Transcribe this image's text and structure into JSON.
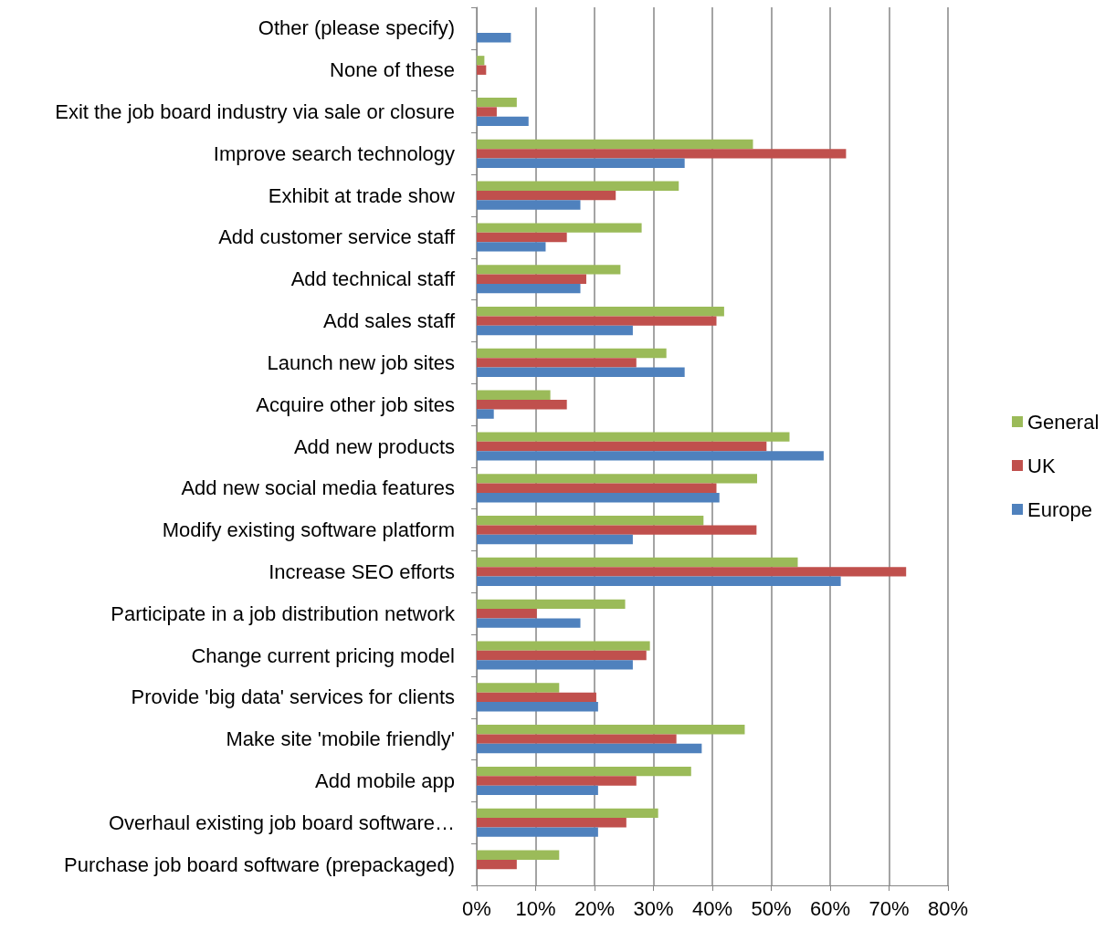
{
  "chart_data": {
    "type": "bar",
    "orientation": "horizontal",
    "categories": [
      "Other (please specify)",
      "None of these",
      "Exit the job board industry via sale or closure",
      "Improve search technology",
      "Exhibit at trade show",
      "Add customer service staff",
      "Add technical staff",
      "Add sales staff",
      "Launch new job sites",
      "Acquire other job sites",
      "Add new products",
      "Add new social media features",
      "Modify existing software platform",
      "Increase SEO efforts",
      "Participate in a job distribution network",
      "Change current pricing model",
      "Provide 'big data' services for clients",
      "Make site 'mobile friendly'",
      "Add mobile app",
      "Overhaul existing job board software…",
      "Purchase job board software (prepackaged)"
    ],
    "series": [
      {
        "name": "General",
        "color": "#9bbb59",
        "values": [
          null,
          1.3,
          6.8,
          46.9,
          34.3,
          28.0,
          24.4,
          42.0,
          32.2,
          12.5,
          53.1,
          47.6,
          38.5,
          54.5,
          25.2,
          29.4,
          14.0,
          45.5,
          36.4,
          30.8,
          14.0
        ]
      },
      {
        "name": "UK",
        "color": "#c0504d",
        "values": [
          null,
          1.6,
          3.4,
          62.7,
          23.6,
          15.3,
          18.6,
          40.7,
          27.1,
          15.3,
          49.2,
          40.7,
          47.5,
          72.9,
          10.2,
          28.8,
          20.3,
          33.9,
          27.1,
          25.4,
          6.8
        ]
      },
      {
        "name": "Europe",
        "color": "#4f81bd",
        "values": [
          5.8,
          null,
          8.8,
          35.3,
          17.6,
          11.7,
          17.6,
          26.5,
          35.3,
          2.9,
          58.9,
          41.2,
          26.5,
          61.8,
          17.6,
          26.5,
          20.6,
          38.2,
          20.6,
          20.6,
          null
        ]
      }
    ],
    "xlim": [
      0,
      80
    ],
    "xticks": [
      {
        "value": 0,
        "label": "0%"
      },
      {
        "value": 10,
        "label": "10%"
      },
      {
        "value": 20,
        "label": "20%"
      },
      {
        "value": 30,
        "label": "30%"
      },
      {
        "value": 40,
        "label": "40%"
      },
      {
        "value": 50,
        "label": "50%"
      },
      {
        "value": 60,
        "label": "60%"
      },
      {
        "value": 70,
        "label": "70%"
      },
      {
        "value": 80,
        "label": "80%"
      }
    ],
    "grid": "x",
    "legend": "right"
  }
}
